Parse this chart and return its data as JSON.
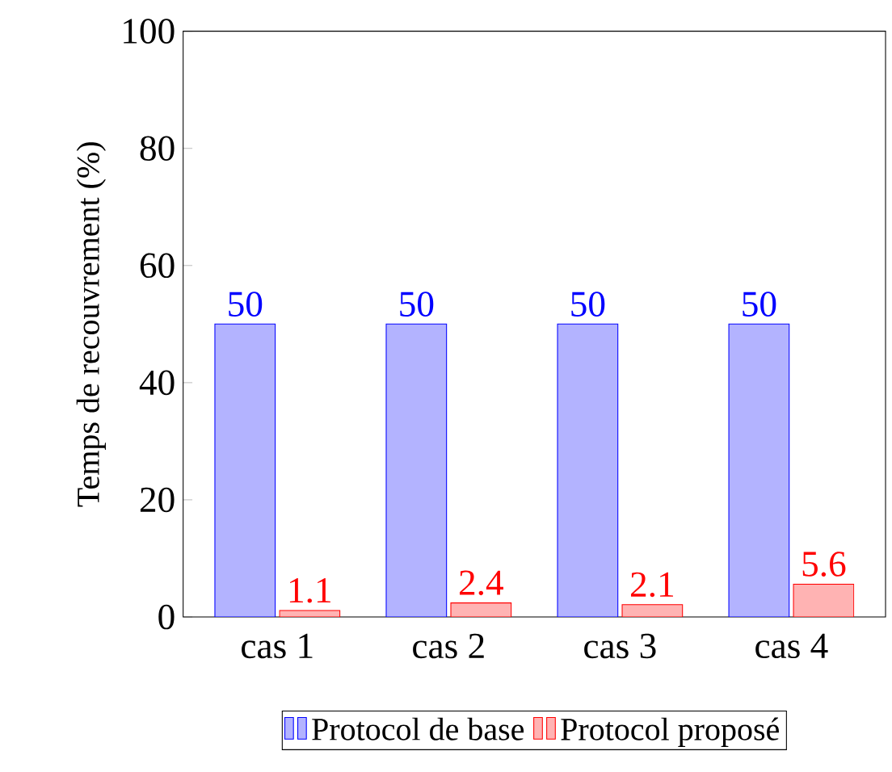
{
  "chart_data": {
    "type": "bar",
    "ylabel": "Temps de recouvrement (%)",
    "categories": [
      "cas 1",
      "cas 2",
      "cas 3",
      "cas 4"
    ],
    "series": [
      {
        "name": "Protocol de base",
        "color": "#b3b3ff",
        "values": [
          50,
          50,
          50,
          50
        ]
      },
      {
        "name": "Protocol proposé",
        "color": "#ffb3b3",
        "values": [
          1.1,
          2.4,
          2.1,
          5.6
        ]
      }
    ],
    "ylim": [
      0,
      100
    ],
    "yticks": [
      0,
      20,
      40,
      60,
      80,
      100
    ],
    "data_labels": true,
    "legend": "bottom"
  }
}
